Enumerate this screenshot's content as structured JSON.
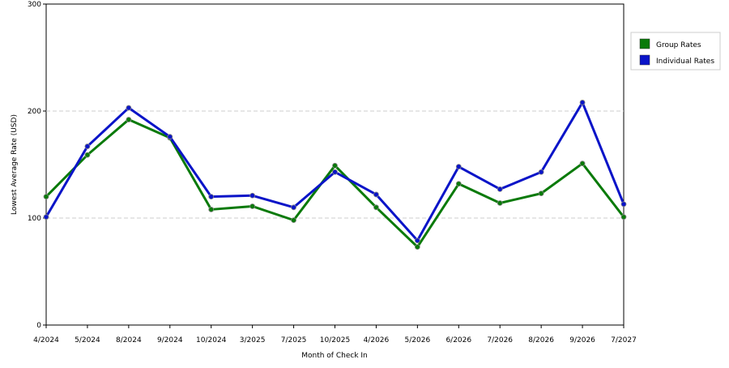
{
  "chart_data": {
    "type": "line",
    "x_label": "Month of Check In",
    "y_label": "Lowest Average Rate (USD)",
    "categories": [
      "4/2024",
      "5/2024",
      "8/2024",
      "9/2024",
      "10/2024",
      "3/2025",
      "7/2025",
      "10/2025",
      "4/2026",
      "5/2026",
      "6/2026",
      "7/2026",
      "8/2026",
      "9/2026",
      "7/2027"
    ],
    "series": [
      {
        "name": "Group Rates",
        "color": "#0a7a0a",
        "values": [
          120,
          159,
          192,
          175,
          108,
          111,
          98,
          149,
          110,
          73,
          132,
          114,
          123,
          151,
          101
        ]
      },
      {
        "name": "Individual Rates",
        "color": "#0a14c8",
        "values": [
          101,
          167,
          203,
          176,
          120,
          121,
          110,
          143,
          122,
          79,
          148,
          127,
          143,
          208,
          113
        ]
      }
    ],
    "ylim": [
      0,
      300
    ],
    "yticks": [
      0,
      100,
      200,
      300
    ],
    "grid": true,
    "legend": "right"
  }
}
